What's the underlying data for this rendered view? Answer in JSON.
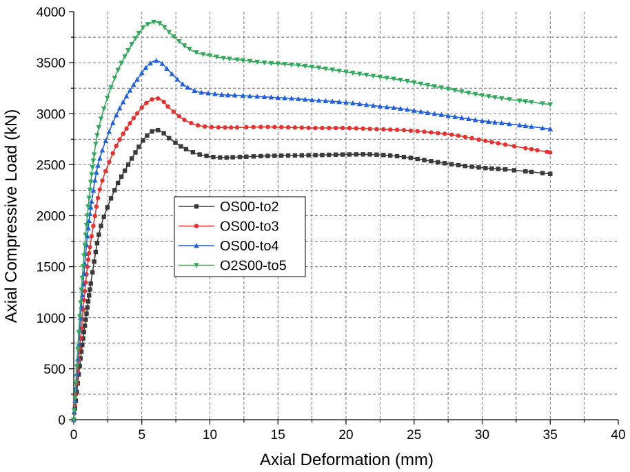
{
  "chart_data": {
    "type": "line",
    "title": "",
    "xlabel": "Axial Deformation (mm)",
    "ylabel": "Axial Compressive Load (kN)",
    "xlim": [
      0,
      40
    ],
    "ylim": [
      0,
      4000
    ],
    "xticks": [
      0,
      5,
      10,
      15,
      20,
      25,
      30,
      35,
      40
    ],
    "yticks": [
      0,
      500,
      1000,
      1500,
      2000,
      2500,
      3000,
      3500,
      4000
    ],
    "grid": true,
    "legend_position": "center-left",
    "series": [
      {
        "name": "OS00-to2",
        "color": "#3a3a3a",
        "marker": "square",
        "x": [
          0,
          0.5,
          1,
          1.5,
          2,
          3,
          4,
          5,
          5.5,
          6,
          6.5,
          7,
          8,
          9,
          10,
          11,
          12,
          14,
          16,
          18,
          20,
          22,
          24,
          26,
          28,
          30,
          32,
          35
        ],
        "y": [
          0,
          600,
          1100,
          1550,
          1900,
          2250,
          2500,
          2720,
          2800,
          2840,
          2820,
          2760,
          2670,
          2610,
          2580,
          2570,
          2575,
          2585,
          2590,
          2595,
          2600,
          2600,
          2580,
          2540,
          2500,
          2470,
          2450,
          2410
        ]
      },
      {
        "name": "OS00-to3",
        "color": "#e8302e",
        "marker": "circle",
        "x": [
          0,
          0.5,
          1,
          1.5,
          2,
          3,
          4,
          5,
          5.5,
          6,
          6.5,
          7,
          8,
          9,
          10,
          11,
          12,
          14,
          16,
          18,
          20,
          22,
          24,
          26,
          28,
          30,
          32,
          35
        ],
        "y": [
          0,
          800,
          1500,
          1950,
          2300,
          2650,
          2880,
          3060,
          3120,
          3150,
          3130,
          3060,
          2950,
          2890,
          2870,
          2865,
          2865,
          2870,
          2865,
          2860,
          2860,
          2850,
          2840,
          2820,
          2790,
          2740,
          2690,
          2620
        ]
      },
      {
        "name": "OS00-to4",
        "color": "#1f5fe0",
        "marker": "triangle-up",
        "x": [
          0,
          0.5,
          1,
          1.5,
          2,
          3,
          4,
          5,
          5.5,
          6,
          6.5,
          7,
          8,
          9,
          10,
          11,
          12,
          14,
          16,
          18,
          20,
          22,
          24,
          26,
          28,
          30,
          32,
          35
        ],
        "y": [
          0,
          1000,
          1800,
          2300,
          2600,
          2950,
          3200,
          3400,
          3480,
          3520,
          3490,
          3420,
          3290,
          3220,
          3200,
          3185,
          3180,
          3165,
          3150,
          3130,
          3110,
          3080,
          3050,
          3010,
          2970,
          2930,
          2900,
          2850
        ]
      },
      {
        "name": "O2S00-to5",
        "color": "#2faa5a",
        "marker": "triangle-down",
        "x": [
          0,
          0.5,
          1,
          1.5,
          2,
          3,
          4,
          5,
          5.5,
          6,
          6.5,
          7,
          8,
          9,
          10,
          11,
          12,
          14,
          16,
          18,
          20,
          22,
          24,
          26,
          28,
          30,
          32,
          35
        ],
        "y": [
          0,
          1150,
          2000,
          2600,
          2950,
          3350,
          3620,
          3830,
          3880,
          3900,
          3870,
          3800,
          3680,
          3600,
          3570,
          3545,
          3530,
          3500,
          3480,
          3450,
          3410,
          3370,
          3330,
          3280,
          3230,
          3180,
          3140,
          3090
        ]
      }
    ]
  }
}
